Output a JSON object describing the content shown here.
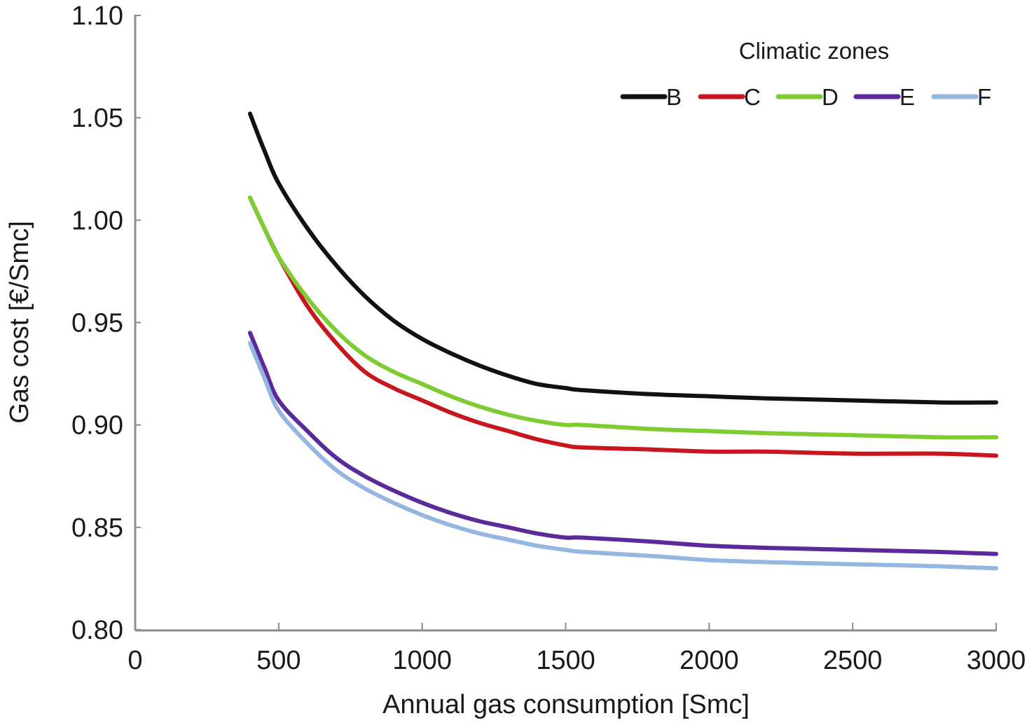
{
  "chart_data": {
    "type": "line",
    "title": "",
    "xlabel": "Annual gas consumption [Smc]",
    "ylabel": "Gas cost [€/Smc]",
    "xlim": [
      0,
      3000
    ],
    "ylim": [
      0.8,
      1.1
    ],
    "xticks": [
      0,
      500,
      1000,
      1500,
      2000,
      2500,
      3000
    ],
    "xtick_labels": [
      "0",
      "500",
      "1000",
      "1500",
      "2000",
      "2500",
      "3000"
    ],
    "yticks": [
      0.8,
      0.85,
      0.9,
      0.95,
      1.0,
      1.05,
      1.1
    ],
    "ytick_labels": [
      "0.80",
      "0.85",
      "0.90",
      "0.95",
      "1.00",
      "1.05",
      "1.10"
    ],
    "grid": false,
    "legend": {
      "title": "Climatic zones",
      "placement": "top-right",
      "orientation": "horizontal"
    },
    "x": [
      400,
      450,
      500,
      600,
      700,
      800,
      900,
      1000,
      1100,
      1200,
      1300,
      1400,
      1500,
      1560,
      1800,
      2000,
      2200,
      2500,
      2800,
      3000
    ],
    "series": [
      {
        "name": "B",
        "color": "#111111",
        "values": [
          1.052,
          1.034,
          1.018,
          0.996,
          0.978,
          0.963,
          0.951,
          0.942,
          0.935,
          0.929,
          0.924,
          0.92,
          0.918,
          0.917,
          0.915,
          0.914,
          0.913,
          0.912,
          0.911,
          0.911
        ]
      },
      {
        "name": "C",
        "color": "#c8161e",
        "values": [
          1.011,
          0.996,
          0.982,
          0.958,
          0.94,
          0.926,
          0.918,
          0.912,
          0.906,
          0.901,
          0.897,
          0.893,
          0.89,
          0.889,
          0.888,
          0.887,
          0.887,
          0.886,
          0.886,
          0.885
        ]
      },
      {
        "name": "D",
        "color": "#7ecb32",
        "values": [
          1.011,
          0.996,
          0.982,
          0.962,
          0.946,
          0.934,
          0.926,
          0.92,
          0.914,
          0.909,
          0.905,
          0.902,
          0.9,
          0.9,
          0.898,
          0.897,
          0.896,
          0.895,
          0.894,
          0.894
        ]
      },
      {
        "name": "E",
        "color": "#5b2a9a",
        "values": [
          0.945,
          0.928,
          0.912,
          0.897,
          0.884,
          0.875,
          0.868,
          0.862,
          0.857,
          0.853,
          0.85,
          0.847,
          0.845,
          0.845,
          0.843,
          0.841,
          0.84,
          0.839,
          0.838,
          0.837
        ]
      },
      {
        "name": "F",
        "color": "#94b6e0",
        "values": [
          0.94,
          0.923,
          0.907,
          0.891,
          0.878,
          0.869,
          0.862,
          0.856,
          0.851,
          0.847,
          0.844,
          0.841,
          0.839,
          0.838,
          0.836,
          0.834,
          0.833,
          0.832,
          0.831,
          0.83
        ]
      }
    ]
  }
}
